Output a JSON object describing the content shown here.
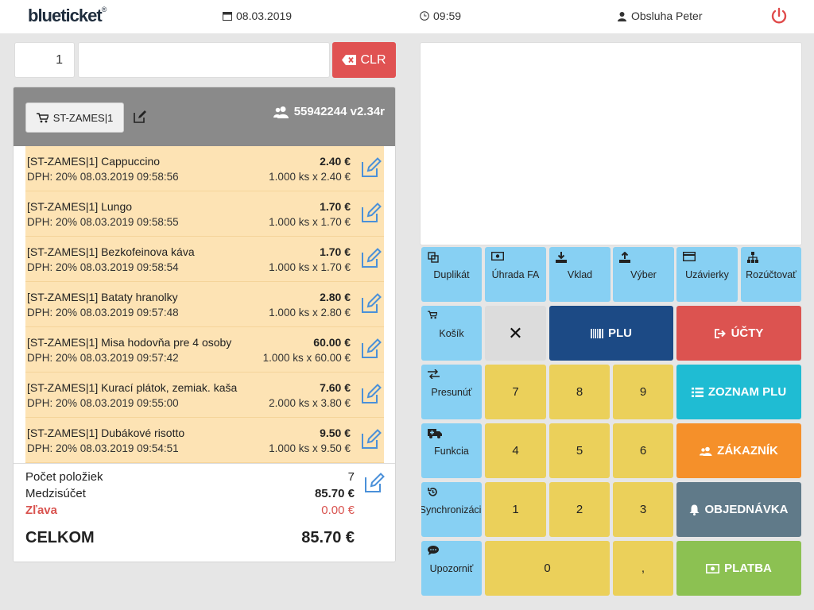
{
  "header": {
    "logo": "blueticket",
    "logo_mark": "®",
    "date": "08.03.2019",
    "time": "09:59",
    "user": "Obsluha Peter"
  },
  "input": {
    "quantity": "1",
    "code": "",
    "clr_label": "CLR"
  },
  "cart": {
    "table_label": "ST-ZAMES|1",
    "receipt_id": "55942244 v2.34r",
    "items": [
      {
        "name": "[ST-ZAMES|1] Cappuccino",
        "price": "2.40 €",
        "meta": "DPH: 20% 08.03.2019 09:58:56",
        "calc": "1.000 ks x 2.40 €"
      },
      {
        "name": "[ST-ZAMES|1] Lungo",
        "price": "1.70 €",
        "meta": "DPH: 20% 08.03.2019 09:58:55",
        "calc": "1.000 ks x 1.70 €"
      },
      {
        "name": "[ST-ZAMES|1] Bezkofeinova káva",
        "price": "1.70 €",
        "meta": "DPH: 20% 08.03.2019 09:58:54",
        "calc": "1.000 ks x 1.70 €"
      },
      {
        "name": "[ST-ZAMES|1] Bataty hranolky",
        "price": "2.80 €",
        "meta": "DPH: 20% 08.03.2019 09:57:48",
        "calc": "1.000 ks x 2.80 €"
      },
      {
        "name": "[ST-ZAMES|1] Misa hodovňa pre 4 osoby",
        "price": "60.00 €",
        "meta": "DPH: 20% 08.03.2019 09:57:42",
        "calc": "1.000 ks x 60.00 €"
      },
      {
        "name": "[ST-ZAMES|1] Kurací plátok, zemiak. kaša",
        "price": "7.60 €",
        "meta": "DPH: 20% 08.03.2019 09:55:00",
        "calc": "2.000 ks x 3.80 €"
      },
      {
        "name": "[ST-ZAMES|1] Dubákové risotto",
        "price": "9.50 €",
        "meta": "DPH: 20% 08.03.2019 09:54:51",
        "calc": "1.000 ks x 9.50 €"
      }
    ],
    "summary": {
      "count_label": "Počet položiek",
      "count_value": "7",
      "subtotal_label": "Medzisúčet",
      "subtotal_value": "85.70 €",
      "discount_label": "Zľava",
      "discount_value": "0.00 €",
      "total_label": "CELKOM",
      "total_value": "85.70 €"
    }
  },
  "keypad": {
    "functions": {
      "duplicate": "Duplikát",
      "invoice_payment": "Úhrada FA",
      "deposit": "Vklad",
      "withdrawal": "Výber",
      "closures": "Uzávierky",
      "split": "Rozúčtovať",
      "basket": "Košík",
      "move": "Presunúť",
      "function": "Funkcia",
      "sync": "Synchronizácia",
      "notice": "Upozorniť"
    },
    "cancel": "✕",
    "plu": "PLU",
    "accounts": "ÚČTY",
    "plu_list": "ZOZNAM PLU",
    "customer": "ZÁKAZNÍK",
    "order": "OBJEDNÁVKA",
    "payment": "PLATBA",
    "digits": {
      "d7": "7",
      "d8": "8",
      "d9": "9",
      "d4": "4",
      "d5": "5",
      "d6": "6",
      "d1": "1",
      "d2": "2",
      "d3": "3",
      "d0": "0",
      "comma": ","
    }
  },
  "colors": {
    "function_key": "#87d0f3",
    "digit_key": "#ebd05a",
    "plu": "#1c4a85",
    "accounts": "#dc5350",
    "plu_list": "#1fbcd3",
    "customer": "#f5902a",
    "order": "#607a89",
    "payment": "#8cc152",
    "item_bg": "#fde3b4"
  }
}
